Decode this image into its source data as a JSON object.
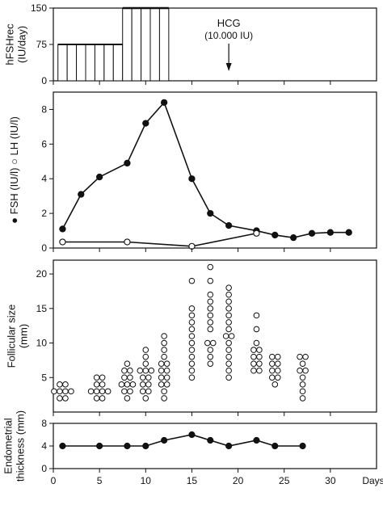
{
  "chart_data": [
    {
      "type": "bar",
      "ylabel": "hFSHrec\n(IU/day)",
      "ylim": [
        0,
        150
      ],
      "yticks": [
        0,
        75,
        150
      ],
      "x": [
        1,
        2,
        3,
        4,
        5,
        6,
        7,
        8,
        9,
        10,
        11,
        12
      ],
      "values": [
        75,
        75,
        75,
        75,
        75,
        75,
        75,
        150,
        150,
        150,
        150,
        150
      ],
      "annotations": [
        {
          "text": "HCG",
          "x": 19
        },
        {
          "text": "(10.000 IU)",
          "x": 19
        }
      ]
    },
    {
      "type": "line",
      "ylabel": "FSH (IU/l) ○ LH (IU/l)",
      "ylabel_filled_marker": "●",
      "ylim": [
        0,
        9
      ],
      "yticks": [
        0,
        2,
        4,
        6,
        8
      ],
      "series": [
        {
          "name": "FSH (IU/l)",
          "marker": "filled",
          "x": [
            1,
            3,
            5,
            8,
            10,
            12,
            15,
            17,
            19,
            22,
            24,
            26,
            28,
            30,
            32
          ],
          "y": [
            1.1,
            3.1,
            4.1,
            4.9,
            7.2,
            8.4,
            4.0,
            2.0,
            1.3,
            1.0,
            0.75,
            0.6,
            0.85,
            0.9,
            0.9
          ]
        },
        {
          "name": "LH (IU/l)",
          "marker": "open",
          "x": [
            1,
            8,
            15,
            22
          ],
          "y": [
            0.35,
            0.35,
            0.1,
            0.85
          ]
        }
      ]
    },
    {
      "type": "scatter",
      "ylabel": "Follicular size\n(mm)",
      "ylim": [
        0,
        22
      ],
      "yticks": [
        5,
        10,
        15,
        20
      ],
      "points": [
        {
          "day": 1,
          "sizes": [
            2,
            2,
            3,
            3,
            3,
            3,
            4,
            4
          ]
        },
        {
          "day": 5,
          "sizes": [
            2,
            2,
            3,
            3,
            3,
            3,
            4,
            4,
            5,
            5
          ]
        },
        {
          "day": 8,
          "sizes": [
            2,
            3,
            3,
            4,
            4,
            4,
            5,
            5,
            6,
            6,
            7
          ]
        },
        {
          "day": 10,
          "sizes": [
            2,
            3,
            3,
            4,
            4,
            5,
            5,
            6,
            6,
            6,
            7,
            8,
            9
          ]
        },
        {
          "day": 12,
          "sizes": [
            2,
            3,
            4,
            4,
            5,
            5,
            6,
            6,
            7,
            7,
            8,
            9,
            10,
            11
          ]
        },
        {
          "day": 15,
          "sizes": [
            5,
            6,
            7,
            8,
            9,
            10,
            11,
            12,
            13,
            14,
            15,
            19
          ]
        },
        {
          "day": 17,
          "sizes": [
            7,
            8,
            9,
            10,
            10,
            12,
            13,
            14,
            15,
            16,
            17,
            19,
            21
          ]
        },
        {
          "day": 19,
          "sizes": [
            5,
            6,
            7,
            8,
            9,
            10,
            11,
            11,
            12,
            13,
            14,
            15,
            16,
            17,
            18
          ]
        },
        {
          "day": 22,
          "sizes": [
            6,
            6,
            7,
            7,
            8,
            8,
            9,
            9,
            10,
            12,
            14
          ]
        },
        {
          "day": 24,
          "sizes": [
            4,
            5,
            5,
            6,
            6,
            7,
            7,
            8,
            8
          ]
        },
        {
          "day": 27,
          "sizes": [
            2,
            3,
            4,
            5,
            6,
            6,
            7,
            8,
            8
          ]
        }
      ]
    },
    {
      "type": "line",
      "ylabel": "Endometrial\nthickness (mm)",
      "ylim": [
        0,
        8
      ],
      "yticks": [
        0,
        4,
        8
      ],
      "xlabel": "Days",
      "xticks": [
        0,
        5,
        10,
        15,
        20,
        25,
        30
      ],
      "xlim": [
        0,
        35
      ],
      "series": [
        {
          "marker": "filled",
          "x": [
            1,
            5,
            8,
            10,
            12,
            15,
            17,
            19,
            22,
            24,
            27
          ],
          "y": [
            4,
            4,
            4,
            4,
            5,
            6,
            5,
            4,
            5,
            4,
            4
          ]
        }
      ]
    }
  ]
}
